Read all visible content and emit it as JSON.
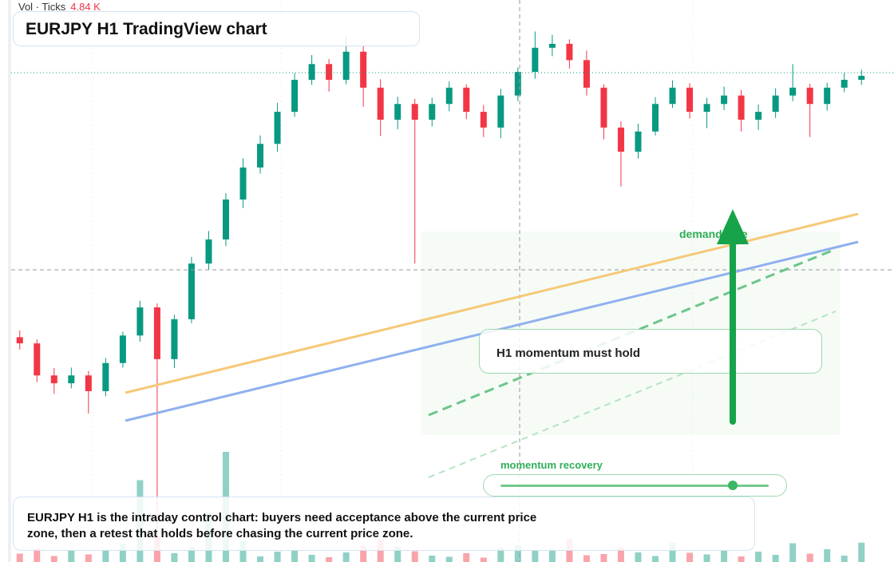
{
  "chart_data": {
    "type": "candlestick",
    "title": "EURJPY H1 TradingView chart",
    "ylim": [
      0,
      100
    ],
    "up_color": "#089981",
    "down_color": "#f23645",
    "open": [
      40.0,
      38.9,
      33.2,
      31.8,
      33.2,
      30.4,
      35.4,
      40.3,
      45.3,
      36.1,
      43.2,
      53.1,
      57.4,
      64.5,
      70.2,
      74.4,
      80.1,
      85.8,
      88.6,
      85.8,
      90.8,
      84.4,
      78.7,
      81.5,
      78.7,
      81.5,
      84.4,
      80.1,
      77.3,
      83.0,
      87.2,
      91.5,
      92.2,
      89.3,
      84.4,
      77.3,
      73.0,
      76.6,
      81.5,
      84.4,
      80.1,
      81.5,
      83.0,
      78.7,
      80.1,
      83.0,
      84.4,
      81.5,
      84.4,
      85.8
    ],
    "high": [
      41.2,
      39.6,
      34.5,
      34.6,
      34.0,
      36.3,
      41.0,
      46.5,
      46.0,
      44.0,
      54.3,
      58.9,
      65.6,
      71.8,
      75.9,
      81.7,
      87.0,
      90.2,
      89.5,
      93.6,
      92.0,
      85.9,
      82.8,
      82.4,
      82.6,
      85.5,
      85.0,
      81.3,
      84.2,
      88.0,
      94.4,
      93.8,
      93.0,
      91.0,
      85.0,
      78.4,
      78.0,
      82.7,
      85.7,
      85.2,
      82.6,
      84.6,
      84.0,
      81.4,
      84.3,
      88.6,
      85.1,
      85.3,
      87.0,
      87.6
    ],
    "low": [
      37.8,
      32.0,
      29.9,
      30.9,
      26.4,
      29.5,
      34.6,
      39.2,
      3.0,
      34.5,
      42.5,
      52.0,
      56.2,
      63.0,
      69.1,
      73.0,
      79.2,
      84.9,
      83.7,
      85.0,
      81.0,
      75.8,
      77.0,
      53.1,
      77.5,
      80.2,
      78.8,
      75.6,
      75.4,
      82.0,
      86.0,
      90.0,
      87.8,
      83.0,
      75.2,
      66.8,
      71.8,
      75.9,
      80.8,
      78.9,
      77.2,
      80.4,
      76.6,
      76.9,
      79.0,
      82.0,
      75.6,
      80.3,
      83.6,
      84.9
    ],
    "close": [
      38.9,
      33.2,
      31.8,
      33.2,
      30.4,
      35.4,
      40.3,
      45.3,
      36.1,
      43.2,
      53.1,
      57.4,
      64.5,
      70.2,
      74.4,
      80.1,
      85.8,
      88.6,
      85.8,
      90.8,
      84.4,
      78.7,
      81.5,
      78.7,
      81.5,
      84.4,
      80.1,
      77.3,
      83.0,
      87.2,
      91.5,
      92.2,
      89.3,
      84.4,
      77.3,
      73.0,
      76.6,
      81.5,
      84.4,
      80.1,
      81.5,
      83.0,
      78.7,
      80.1,
      83.0,
      84.4,
      81.5,
      84.4,
      85.8,
      86.5
    ],
    "volume": {
      "name": "Vol · Ticks",
      "ylim": [
        0,
        30
      ],
      "last_label": "4.84 K",
      "values": [
        2.1,
        3.4,
        1.5,
        2.8,
        1.9,
        3.2,
        4.5,
        20.5,
        6.3,
        2.2,
        3.8,
        12.4,
        27.6,
        5.2,
        1.4,
        2.6,
        3.1,
        1.8,
        1.2,
        2.4,
        4.1,
        5.6,
        3.9,
        2.7,
        1.6,
        1.3,
        2.2,
        1.1,
        3.5,
        4.2,
        2.9,
        3.3,
        5.8,
        1.7,
        2.0,
        3.6,
        2.4,
        1.5,
        4.8,
        2.3,
        1.9,
        3.0,
        1.4,
        2.6,
        1.8,
        4.7,
        2.1,
        3.2,
        1.6,
        4.84
      ]
    }
  },
  "annotations": {
    "zone_label": "demand side",
    "callout": "H1 momentum must hold",
    "slider_label": "momentum recovery",
    "caption": "EURJPY H1 is the intraday control chart: buyers need acceptance above the current price zone, then a retest that holds before chasing the current price zone."
  }
}
